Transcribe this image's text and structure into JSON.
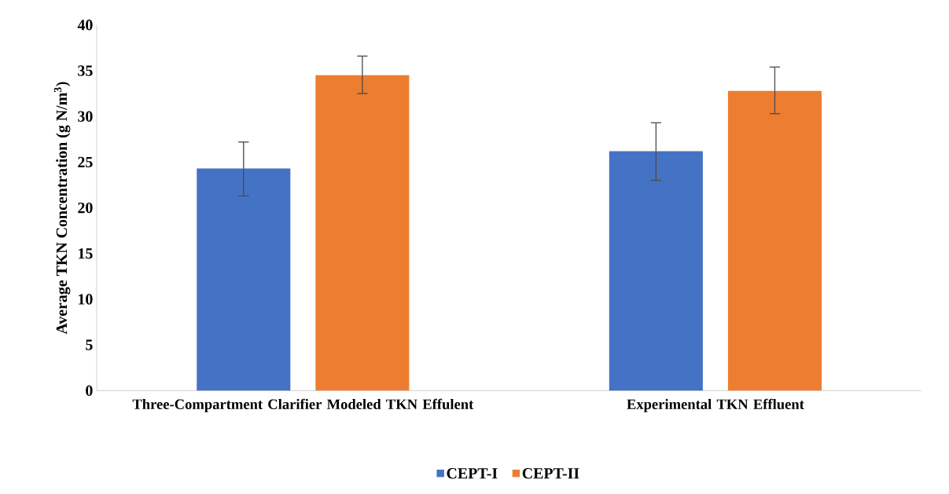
{
  "chart_data": {
    "type": "bar",
    "ylabel": "Average TKN  Concentration (g N/m$^{3}$)",
    "categories": [
      "Three-Compartment Clarifier Modeled TKN Effulent",
      "Experimental TKN Effluent"
    ],
    "series": [
      {
        "name": "CEPT-I",
        "color": "#4472c4",
        "values": [
          24.3,
          26.2
        ],
        "errors": [
          [
            21.3,
            27.2
          ],
          [
            23.0,
            29.3
          ]
        ]
      },
      {
        "name": "CEPT-II",
        "color": "#ed7d31",
        "values": [
          34.5,
          32.8
        ],
        "errors": [
          [
            32.5,
            36.6
          ],
          [
            30.3,
            35.4
          ]
        ]
      }
    ],
    "ylim": [
      0,
      40
    ],
    "yticks": [
      0,
      5,
      10,
      15,
      20,
      25,
      30,
      35,
      40
    ],
    "legend": "bottom"
  }
}
